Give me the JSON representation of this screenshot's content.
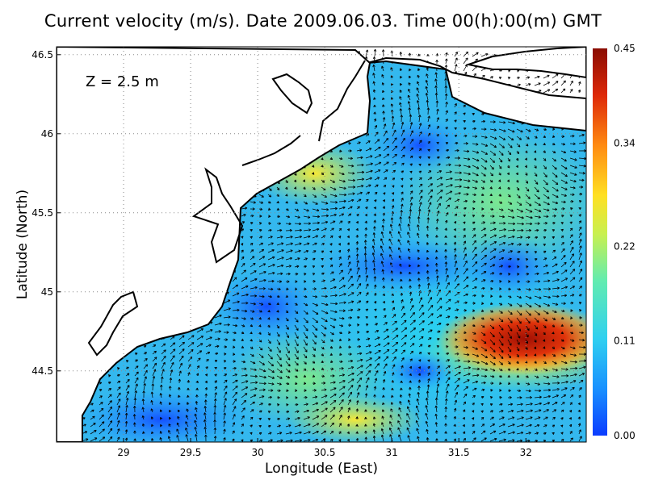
{
  "title": "Current velocity (m/s). Date 2009.06.03. Time 00(h):00(m) GMT",
  "depth_label": "Z = 2.5 m",
  "x_axis": {
    "label": "Longitude (East)",
    "range": [
      28.5,
      32.45
    ],
    "ticks": [
      "29",
      "29.5",
      "30",
      "30.5",
      "31",
      "31.5",
      "32"
    ]
  },
  "y_axis": {
    "label": "Latitude (North)",
    "range": [
      44.05,
      46.55
    ],
    "ticks": [
      "44.5",
      "45",
      "45.5",
      "46",
      "46.5"
    ]
  },
  "colorbar": {
    "min": 0.0,
    "max": 0.45,
    "labels": [
      "0.00",
      "0.11",
      "0.22",
      "0.34",
      "0.45"
    ],
    "colors": [
      "#0b3cff",
      "#1890ff",
      "#2fd0f0",
      "#62ecb0",
      "#c8f050",
      "#ffe022",
      "#ff8a12",
      "#dd2808",
      "#8a0c02"
    ]
  },
  "colors": {
    "land": "#ffffff",
    "coast": "#000000",
    "grid": "#888888"
  }
}
